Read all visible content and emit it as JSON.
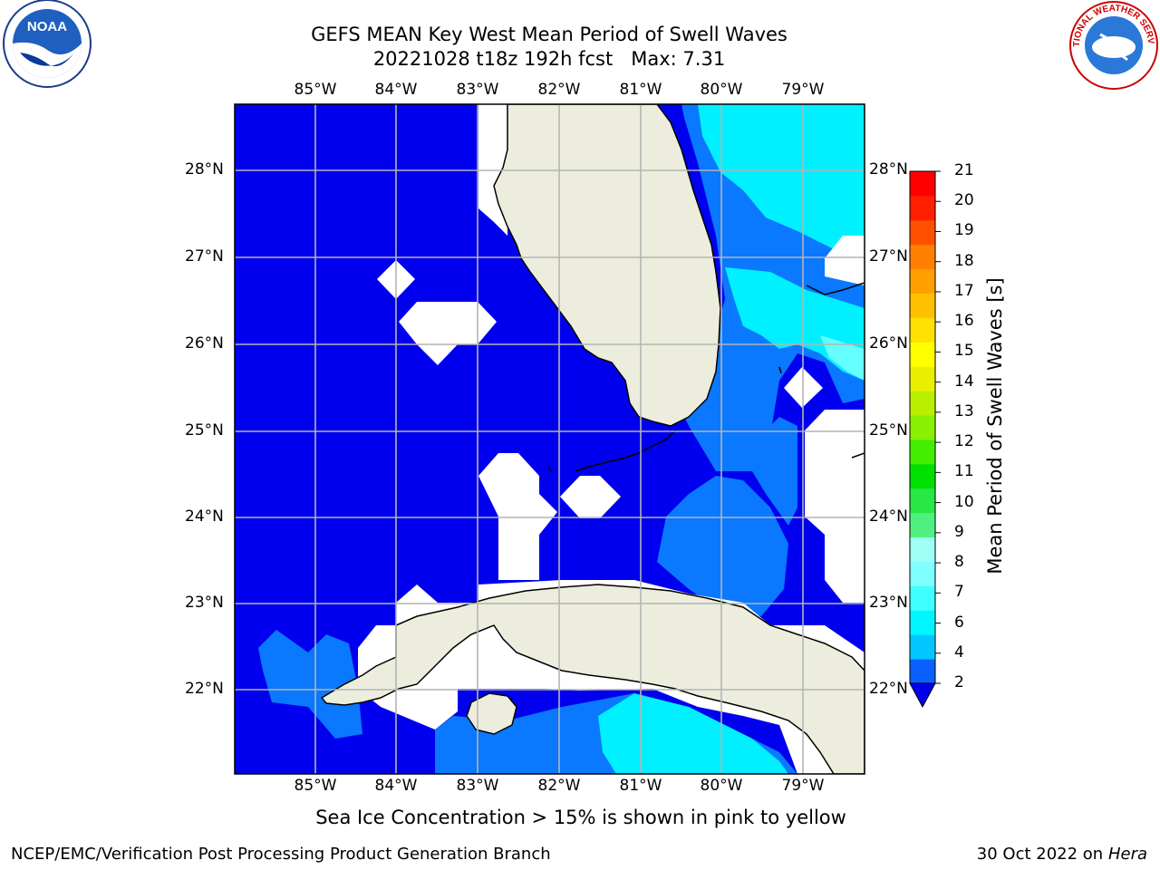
{
  "header": {
    "title_line1": "GEFS MEAN Key West Mean Period of Swell Waves",
    "title_line2_date": "20221028 t18z 192h fcst",
    "title_line2_max": "Max: 7.31"
  },
  "logos": {
    "left": {
      "name": "noaa-logo",
      "text": "NOAA"
    },
    "right": {
      "name": "nws-logo",
      "text": "NATIONAL WEATHER SERVICE"
    }
  },
  "map": {
    "lon_labels": [
      "85°W",
      "84°W",
      "83°W",
      "82°W",
      "81°W",
      "80°W",
      "79°W"
    ],
    "lat_labels": [
      "28°N",
      "27°N",
      "26°N",
      "25°N",
      "24°N",
      "23°N",
      "22°N"
    ],
    "colors": {
      "ocean_2_4": "#0000ee",
      "ocean_4_6": "#0a78ff",
      "ocean_6_7": "#00f0ff",
      "land": "#ededde",
      "missing": "#ffffff",
      "grid": "#b4b4b4"
    }
  },
  "colorbar": {
    "title": "Mean Period of Swell Waves [s]",
    "ticks": [
      "2",
      "4",
      "6",
      "7",
      "8",
      "9",
      "10",
      "11",
      "12",
      "13",
      "14",
      "15",
      "16",
      "17",
      "18",
      "19",
      "20",
      "21"
    ],
    "colors": [
      "#0a60ff",
      "#00c8ff",
      "#00f5ff",
      "#40ffff",
      "#80ffff",
      "#a0fff5",
      "#50f080",
      "#28e848",
      "#00e000",
      "#44ee00",
      "#88f000",
      "#b8f000",
      "#e8f000",
      "#ffff00",
      "#ffe000",
      "#ffc000",
      "#ffa000",
      "#ff8000",
      "#ff5000",
      "#ff2000",
      "#ff0000"
    ],
    "under_color": "#0000ee"
  },
  "caption": "Sea Ice Concentration > 15% is shown in pink to yellow",
  "footer": {
    "left": "NCEP/EMC/Verification Post Processing Product Generation Branch",
    "right_date": "30 Oct 2022 on",
    "right_machine": "Hera"
  }
}
